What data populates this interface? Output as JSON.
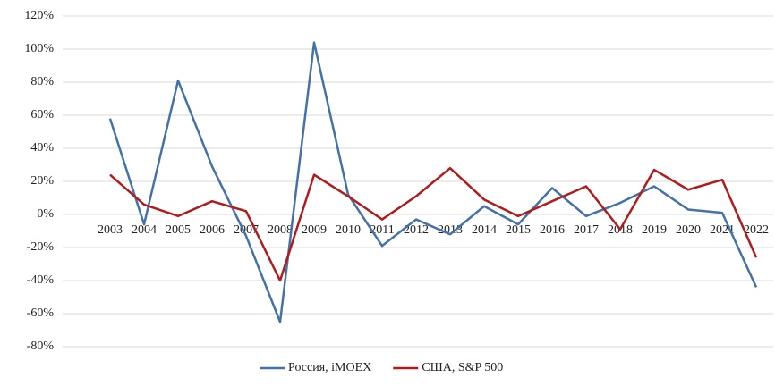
{
  "chart_data": {
    "type": "line",
    "categories": [
      "2003",
      "2004",
      "2005",
      "2006",
      "2007",
      "2008",
      "2009",
      "2010",
      "2011",
      "2012",
      "2013",
      "2014",
      "2015",
      "2016",
      "2017",
      "2018",
      "2019",
      "2020",
      "2021",
      "2022"
    ],
    "series": [
      {
        "name": "Россия, iMOEX",
        "color": "#4472a8",
        "values": [
          58,
          -6,
          81,
          29,
          -13,
          -65,
          104,
          12,
          -19,
          -3,
          -12,
          5,
          -6,
          16,
          -1,
          7,
          17,
          3,
          1,
          -44
        ]
      },
      {
        "name": "США, S&P 500",
        "color": "#b01c1c",
        "values": [
          24,
          6,
          -1,
          8,
          2,
          -40,
          24,
          11,
          -3,
          11,
          28,
          9,
          -1,
          8,
          17,
          -9,
          27,
          15,
          21,
          -26
        ]
      }
    ],
    "ylim": [
      -80,
      120
    ],
    "yticks": [
      {
        "value": -80,
        "label": "-80%"
      },
      {
        "value": -60,
        "label": "-60%"
      },
      {
        "value": -40,
        "label": "-40%"
      },
      {
        "value": -20,
        "label": "-20%"
      },
      {
        "value": 0,
        "label": "0%"
      },
      {
        "value": 20,
        "label": "20%"
      },
      {
        "value": 40,
        "label": "40%"
      },
      {
        "value": 60,
        "label": "60%"
      },
      {
        "value": 80,
        "label": "80%"
      },
      {
        "value": 100,
        "label": "100%"
      },
      {
        "value": 120,
        "label": "120%"
      }
    ],
    "grid": true,
    "legend": "bottom"
  }
}
